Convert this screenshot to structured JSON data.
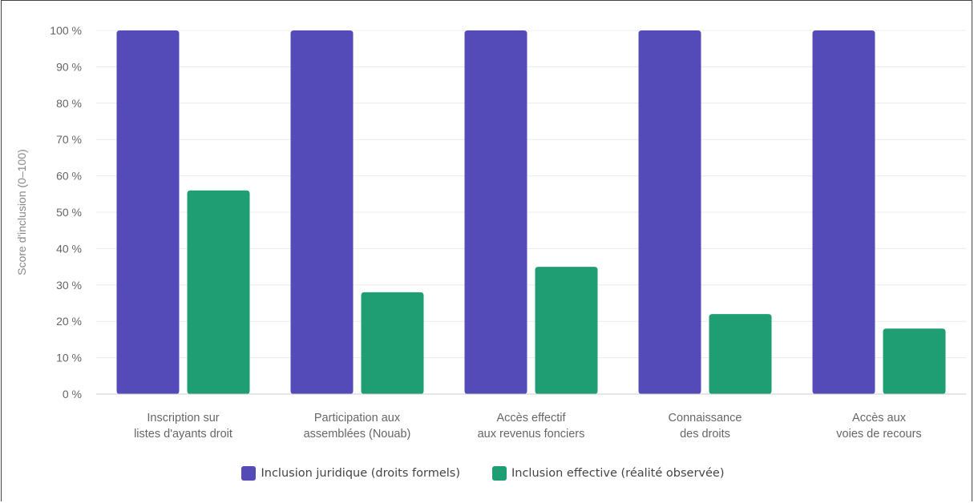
{
  "chart_data": {
    "type": "bar",
    "title": "",
    "xlabel": "",
    "ylabel": "Score d'inclusion (0–100)",
    "ylim": [
      0,
      100
    ],
    "y_ticks": [
      "0 %",
      "10 %",
      "20 %",
      "30 %",
      "40 %",
      "50 %",
      "60 %",
      "70 %",
      "80 %",
      "90 %",
      "100 %"
    ],
    "grid": true,
    "legend_position": "bottom",
    "categories": [
      [
        "Inscription sur",
        "listes d'ayants droit"
      ],
      [
        "Participation aux",
        "assemblées (Nouab)"
      ],
      [
        "Accès effectif",
        "aux revenus fonciers"
      ],
      [
        "Connaissance",
        "des droits"
      ],
      [
        "Accès aux",
        "voies de recours"
      ]
    ],
    "series": [
      {
        "name": "Inclusion juridique (droits formels)",
        "color": "#554bb8",
        "values": [
          100,
          100,
          100,
          100,
          100
        ]
      },
      {
        "name": "Inclusion effective (réalité observée)",
        "color": "#1f9e74",
        "values": [
          56,
          28,
          35,
          22,
          18
        ]
      }
    ]
  }
}
